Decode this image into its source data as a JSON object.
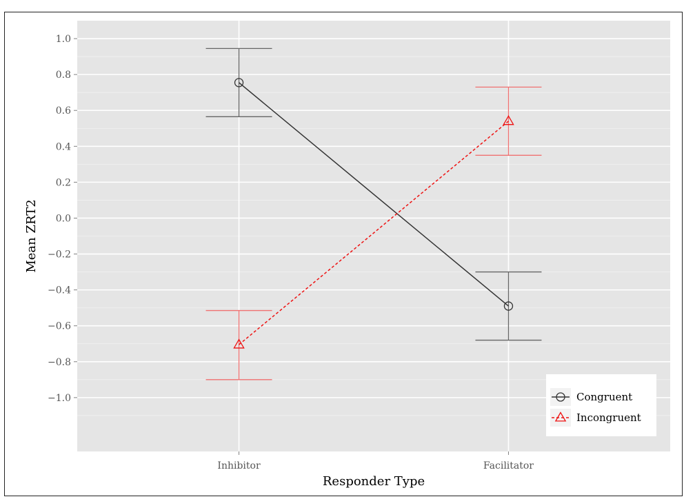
{
  "chart_data": {
    "type": "line",
    "xlabel": "Responder Type",
    "ylabel": "Mean ZRT2",
    "categories": [
      "Inhibitor",
      "Facilitator"
    ],
    "ylim": [
      -1.3,
      1.1
    ],
    "yticks": [
      1.0,
      0.8,
      0.6,
      0.4,
      0.2,
      0.0,
      -0.2,
      -0.4,
      -0.6,
      -0.8,
      -1.0
    ],
    "ytick_labels": [
      "1.0",
      "0.8",
      "0.6",
      "0.4",
      "0.2",
      "0.0",
      "−0.2",
      "−0.4",
      "−0.6",
      "−0.8",
      "−1.0"
    ],
    "grid": true,
    "legend_position": "bottom-right",
    "series": [
      {
        "name": "Congruent",
        "color": "#333333",
        "errorbar_color": "#666666",
        "marker": "circle",
        "line_style": "solid",
        "values": [
          0.755,
          -0.49
        ],
        "lower": [
          0.565,
          -0.68
        ],
        "upper": [
          0.945,
          -0.3
        ]
      },
      {
        "name": "Incongruent",
        "color": "#ee1111",
        "errorbar_color": "#f07070",
        "marker": "triangle",
        "line_style": "dashed",
        "values": [
          -0.705,
          0.54
        ],
        "lower": [
          -0.9,
          0.35
        ],
        "upper": [
          -0.515,
          0.73
        ]
      }
    ]
  }
}
